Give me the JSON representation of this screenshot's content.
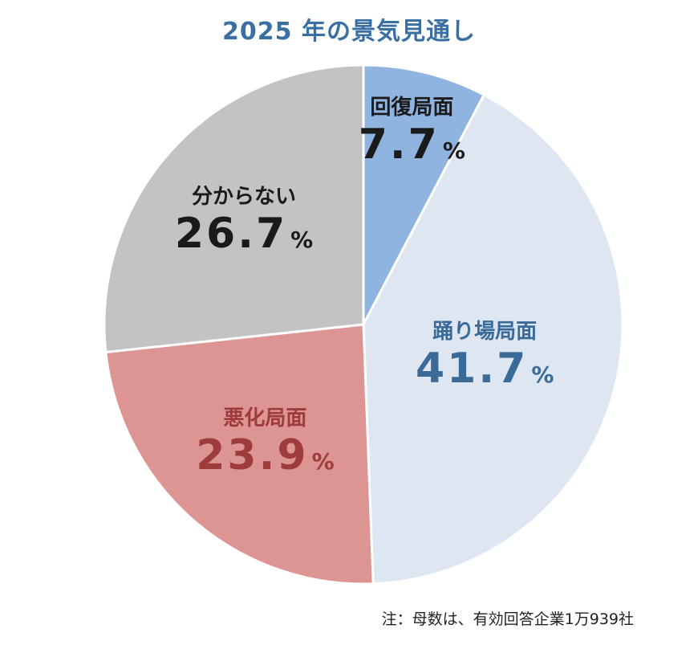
{
  "chart_data": {
    "type": "pie",
    "title": "2025 年の景気見通し",
    "slices": [
      {
        "label": "回復局面",
        "value": 7.7,
        "color": "#8fb4e0",
        "text_color": "#1a1a1a",
        "display": "7.7"
      },
      {
        "label": "踊り場局面",
        "value": 41.7,
        "color": "#dde6f1",
        "text_color": "#3a6a98",
        "display": "41.7"
      },
      {
        "label": "悪化局面",
        "value": 23.9,
        "color": "#dc9593",
        "text_color": "#9e3b3b",
        "display": "23.9"
      },
      {
        "label": "分からない",
        "value": 26.7,
        "color": "#c3c3c3",
        "text_color": "#1a1a1a",
        "display": "26.7"
      }
    ],
    "unit": "%",
    "start": "12 o'clock",
    "direction": "clockwise"
  },
  "footnote": "注：母数は、有効回答企業1万939社"
}
